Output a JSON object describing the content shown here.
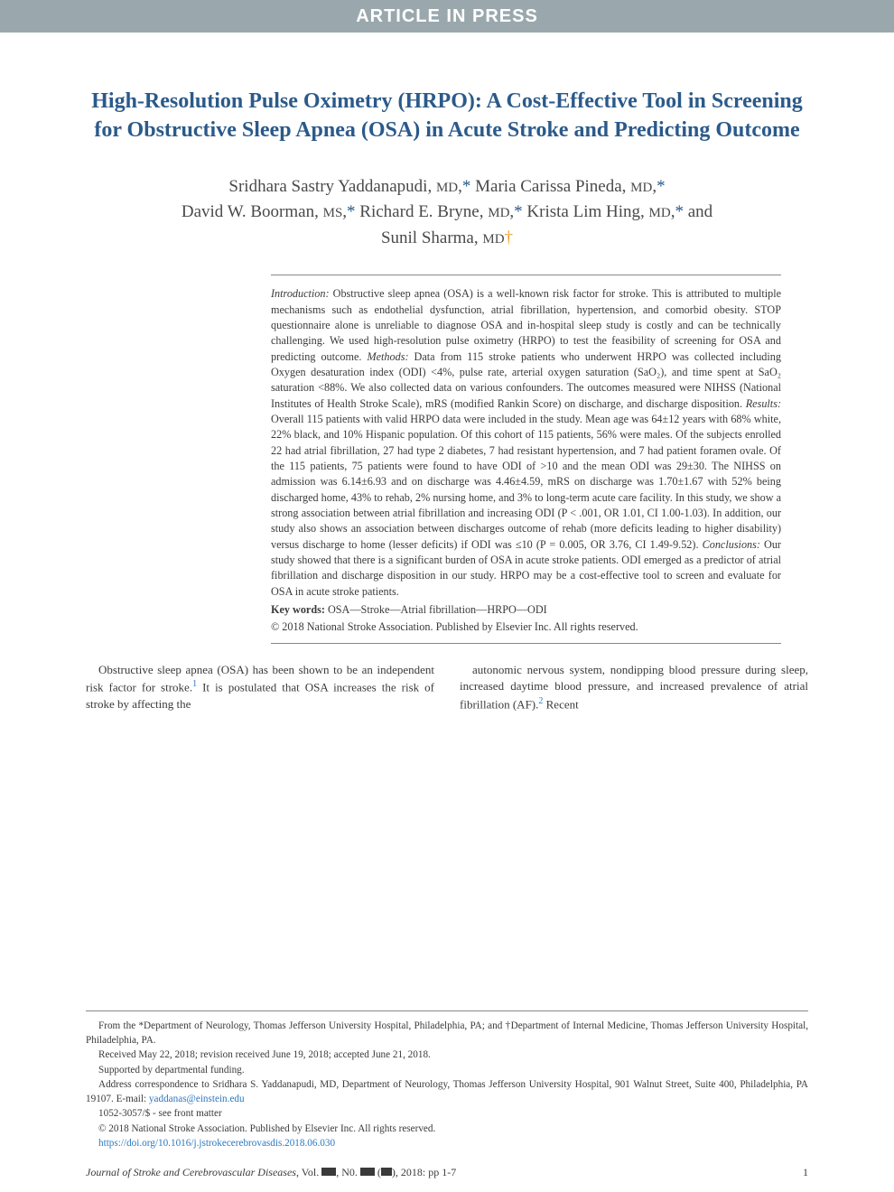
{
  "banner": {
    "text": "ARTICLE IN PRESS",
    "bg": "#9aa8ad",
    "fg": "#ffffff"
  },
  "title": "High-Resolution Pulse Oximetry (HRPO): A Cost-Effective Tool in Screening for Obstructive Sleep Apnea (OSA) in Acute Stroke and Predicting Outcome",
  "title_color": "#2b5a8a",
  "authors_html": "Sridhara Sastry Yaddanapudi, MD,* Maria Carissa Pineda, MD,*<br>David W. Boorman, MS,* Richard E. Bryne, MD,* Krista Lim Hing, MD,* and<br>Sunil Sharma, MD†",
  "abstract": {
    "intro_label": "Introduction:",
    "intro": " Obstructive sleep apnea (OSA) is a well-known risk factor for stroke. This is attributed to multiple mechanisms such as endothelial dysfunction, atrial fibrillation, hypertension, and comorbid obesity. STOP questionnaire alone is unreliable to diagnose OSA and in-hospital sleep study is costly and can be technically challenging. We used high-resolution pulse oximetry (HRPO) to test the feasibility of screening for OSA and predicting outcome. ",
    "methods_label": "Methods:",
    "methods": " Data from 115 stroke patients who underwent HRPO was collected including Oxygen desaturation index (ODI) <4%, pulse rate, arterial oxygen saturation (SaO₂), and time spent at SaO₂ saturation <88%. We also collected data on various confounders. The outcomes measured were NIHSS (National Institutes of Health Stroke Scale), mRS (modified Rankin Score) on discharge, and discharge disposition. ",
    "results_label": "Results:",
    "results": " Overall 115 patients with valid HRPO data were included in the study. Mean age was 64±12 years with 68% white, 22% black, and 10% Hispanic population. Of this cohort of 115 patients, 56% were males. Of the subjects enrolled 22 had atrial fibrillation, 27 had type 2 diabetes, 7 had resistant hypertension, and 7 had patient foramen ovale. Of the 115 patients, 75 patients were found to have ODI of >10 and the mean ODI was 29±30. The NIHSS on admission was 6.14±6.93 and on discharge was 4.46±4.59, mRS on discharge was 1.70±1.67 with 52% being discharged home, 43% to rehab, 2% nursing home, and 3% to long-term acute care facility. In this study, we show a strong association between atrial fibrillation and increasing ODI (P < .001, OR 1.01, CI 1.00-1.03). In addition, our study also shows an association between discharges outcome of rehab (more deficits leading to higher disability) versus discharge to home (lesser deficits) if ODI was ≤10 (P = 0.005, OR 3.76, CI 1.49-9.52). ",
    "conclusions_label": "Conclusions:",
    "conclusions": " Our study showed that there is a significant burden of OSA in acute stroke patients. ODI emerged as a predictor of atrial fibrillation and discharge disposition in our study. HRPO may be a cost-effective tool to screen and evaluate for OSA in acute stroke patients."
  },
  "keywords": {
    "label": "Key words:",
    "text": " OSA—Stroke—Atrial fibrillation—HRPO—ODI"
  },
  "copyright_abs": "© 2018 National Stroke Association. Published by Elsevier Inc. All rights reserved.",
  "body": {
    "col1": "Obstructive sleep apnea (OSA) has been shown to be an independent risk factor for stroke.¹ It is postulated that OSA increases the risk of stroke by affecting the",
    "col2": "autonomic nervous system, nondipping blood pressure during sleep, increased daytime blood pressure, and increased prevalence of atrial fibrillation (AF).² Recent"
  },
  "footnotes": {
    "from": "From the *Department of Neurology, Thomas Jefferson University Hospital, Philadelphia, PA; and †Department of Internal Medicine, Thomas Jefferson University Hospital, Philadelphia, PA.",
    "received": "Received May 22, 2018; revision received June 19, 2018; accepted June 21, 2018.",
    "supported": "Supported by departmental funding.",
    "correspondence": "Address correspondence to Sridhara S. Yaddanapudi, MD, Department of Neurology, Thomas Jefferson University Hospital, 901 Walnut Street, Suite 400, Philadelphia, PA 19107. E-mail: ",
    "email": "yaddanas@einstein.edu",
    "issn": "1052-3057/$ - see front matter",
    "copyright": "© 2018 National Stroke Association. Published by Elsevier Inc. All rights reserved.",
    "doi": "https://doi.org/10.1016/j.jstrokecerebrovasdis.2018.06.030"
  },
  "footer": {
    "journal": "Journal of Stroke and Cerebrovascular Diseases",
    "vol_prefix": ", Vol. ",
    "no_prefix": ", N0. ",
    "paren_mid": " (",
    "paren_end": "), 2018: pp 1-7",
    "page": "1"
  },
  "colors": {
    "text": "#3a3a3a",
    "link": "#2b78c2",
    "accent_star": "#2b5a8a",
    "accent_dagger": "#e8a028",
    "rule": "#888888"
  },
  "typography": {
    "title_pt": 24,
    "authors_pt": 19,
    "abstract_pt": 12.2,
    "body_pt": 13,
    "footnote_pt": 11.2,
    "footer_pt": 12,
    "family": "Georgia, Times New Roman, serif"
  }
}
